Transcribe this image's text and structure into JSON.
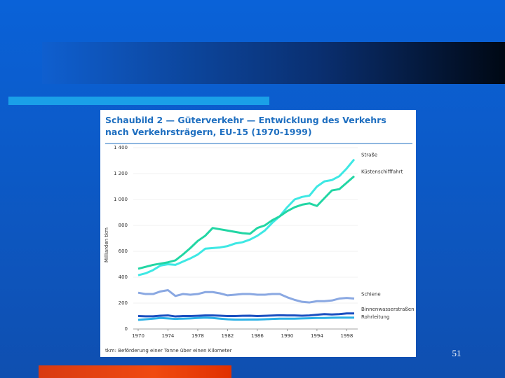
{
  "page_number": "51",
  "chart_data": {
    "type": "line",
    "title": "Schaubild 2 — Güterverkehr — Entwicklung des Verkehrs nach Verkehrsträgern, EU-15 (1970-1999)",
    "ylabel": "Milliarden tkm",
    "footnote": "tkm: Beförderung einer Tonne über einen Kilometer",
    "x": [
      1970,
      1971,
      1972,
      1973,
      1974,
      1975,
      1976,
      1977,
      1978,
      1979,
      1980,
      1981,
      1982,
      1983,
      1984,
      1985,
      1986,
      1987,
      1988,
      1989,
      1990,
      1991,
      1992,
      1993,
      1994,
      1995,
      1996,
      1997,
      1998,
      1999
    ],
    "xlim": [
      1970,
      1999
    ],
    "xticks": [
      1970,
      1974,
      1978,
      1982,
      1986,
      1990,
      1994,
      1998
    ],
    "ylim": [
      0,
      1400
    ],
    "yticks": [
      0,
      200,
      400,
      600,
      800,
      {
        "value": 1000,
        "label": "1 000"
      },
      {
        "value": 1200,
        "label": "1 200"
      },
      {
        "value": 1400,
        "label": "1 400"
      }
    ],
    "grid": true,
    "series": [
      {
        "name": "Straße",
        "color": "#3ee8e4",
        "values": [
          415,
          430,
          455,
          490,
          500,
          495,
          520,
          545,
          575,
          620,
          625,
          630,
          640,
          660,
          670,
          690,
          720,
          760,
          820,
          870,
          940,
          1000,
          1020,
          1030,
          1100,
          1140,
          1150,
          1180,
          1240,
          1310
        ]
      },
      {
        "name": "Küstenschifffahrt",
        "color": "#22d6a4",
        "values": [
          465,
          480,
          495,
          505,
          515,
          530,
          575,
          625,
          680,
          720,
          780,
          770,
          760,
          750,
          740,
          735,
          780,
          800,
          840,
          870,
          910,
          940,
          960,
          970,
          950,
          1010,
          1070,
          1080,
          1130,
          1180
        ]
      },
      {
        "name": "Schiene",
        "color": "#8aa8e2",
        "values": [
          280,
          270,
          270,
          290,
          300,
          255,
          270,
          265,
          270,
          285,
          285,
          275,
          260,
          265,
          270,
          270,
          265,
          265,
          270,
          270,
          245,
          225,
          210,
          205,
          215,
          215,
          220,
          235,
          240,
          235
        ]
      },
      {
        "name": "Binnenwasserstraßen",
        "color": "#1a4fc0",
        "values": [
          100,
          98,
          98,
          103,
          105,
          97,
          100,
          100,
          102,
          105,
          105,
          103,
          100,
          100,
          102,
          103,
          100,
          102,
          104,
          106,
          105,
          105,
          103,
          105,
          110,
          115,
          112,
          115,
          120,
          120
        ]
      },
      {
        "name": "Rohrleitung",
        "color": "#2ab0e6",
        "values": [
          70,
          75,
          80,
          85,
          82,
          78,
          80,
          82,
          85,
          88,
          85,
          80,
          75,
          72,
          72,
          73,
          73,
          75,
          78,
          80,
          80,
          80,
          82,
          83,
          85,
          85,
          87,
          88,
          88,
          88
        ]
      }
    ]
  }
}
